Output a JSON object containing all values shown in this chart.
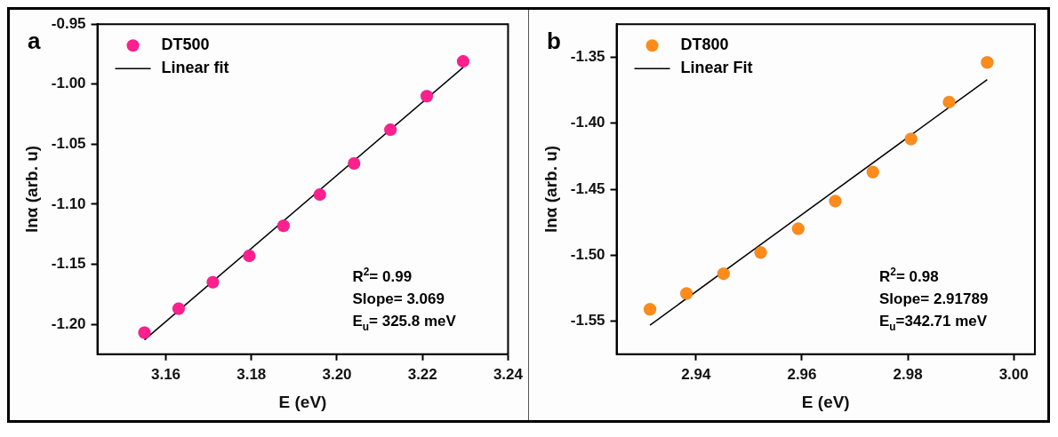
{
  "chart_data": [
    {
      "type": "scatter",
      "title": "a",
      "xlabel": "E (eV)",
      "ylabel": "lnα (arb. u)",
      "xlim": [
        3.144,
        3.24
      ],
      "xticks": [
        3.16,
        3.18,
        {
          "value": 3.2,
          "label": "3.20"
        },
        3.22,
        3.24
      ],
      "ylim": [
        -1.225,
        -0.95
      ],
      "yticks": [
        -0.95,
        {
          "value": -1,
          "label": "-1.00"
        },
        -1.05,
        {
          "value": -1.1,
          "label": "-1.10"
        },
        -1.15,
        {
          "value": -1.2,
          "label": "-1.20"
        }
      ],
      "grid": false,
      "legend": "top left",
      "marker": "circle",
      "annotations": [
        "R$^{2}$= 0.99",
        "Slope= 3.069",
        "E$_{u}$= 325.8 meV"
      ],
      "series": [
        {
          "name": "DT500",
          "color": "#ff1f8e",
          "x": [
            3.155,
            3.163,
            3.171,
            3.1795,
            3.1875,
            3.196,
            3.204,
            3.2125,
            3.221,
            3.2295
          ],
          "values": [
            -1.207,
            -1.187,
            -1.165,
            -1.143,
            -1.118,
            -1.092,
            -1.066,
            -1.038,
            -1.01,
            -0.981
          ]
        },
        {
          "name": "Linear fit",
          "type": "line",
          "marker": "none",
          "color": "#000000",
          "x": [
            3.155,
            3.2295
          ],
          "values": [
            -1.213,
            -0.986
          ]
        }
      ]
    },
    {
      "type": "scatter",
      "title": "b",
      "xlabel": "E (eV)",
      "ylabel": "lnα (arb. u)",
      "xlim": [
        2.925,
        3.004
      ],
      "xticks": [
        2.94,
        2.96,
        2.98,
        {
          "value": 3,
          "label": "3.00"
        }
      ],
      "ylim": [
        -1.575,
        -1.325
      ],
      "yticks": [
        -1.35,
        {
          "value": -1.4,
          "label": "-1.40"
        },
        -1.45,
        {
          "value": -1.5,
          "label": "-1.50"
        },
        -1.55
      ],
      "grid": false,
      "legend": "top left",
      "marker": "circle",
      "annotations": [
        "R$^{2}$= 0.98",
        "Slope= 2.91789",
        "E$_{u}$=342.71 meV"
      ],
      "series": [
        {
          "name": "DT800",
          "color": "#ff8c1a",
          "x": [
            2.9313,
            2.9382,
            2.9452,
            2.9522,
            2.9593,
            2.9663,
            2.9734,
            2.9806,
            2.9878,
            2.995
          ],
          "values": [
            -1.541,
            -1.529,
            -1.514,
            -1.498,
            -1.48,
            -1.459,
            -1.437,
            -1.412,
            -1.384,
            -1.354
          ]
        },
        {
          "name": "Linear Fit",
          "type": "line",
          "marker": "none",
          "color": "#000000",
          "x": [
            2.9313,
            2.995
          ],
          "values": [
            -1.553,
            -1.367
          ]
        }
      ]
    }
  ]
}
